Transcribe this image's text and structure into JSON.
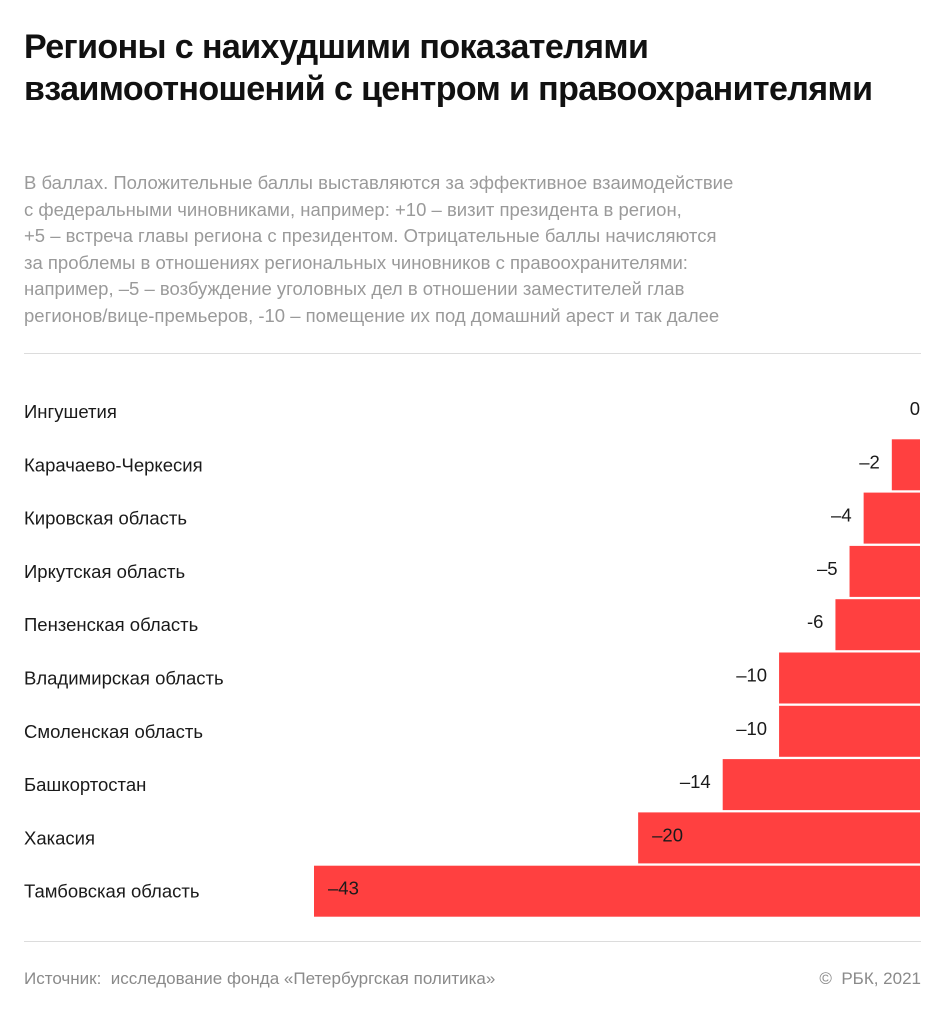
{
  "header": {
    "title": "Регионы с наихудшими показателями взаимоотношений с центром и правоохранителями",
    "subtitle": "В баллах. Положительные баллы выставляются за эффективное взаимодействие\nс федеральными чиновниками, например: +10 – визит президента в регион,\n+5 – встреча главы региона с президентом. Отрицательные баллы начисляются\nза проблемы в отношениях региональных чиновников с правоохранителями:\nнапример, –5 – возбуждение уголовных дел в отношении заместителей глав\nрегионов/вице-премьеров, -10 – помещение их под домашний арест и так далее"
  },
  "chart_data": {
    "type": "bar",
    "orientation": "horizontal",
    "categories": [
      "Ингушетия",
      "Карачаево-Черкесия",
      "Кировская область",
      "Иркутская область",
      "Пензенская область",
      "Владимирская область",
      "Смоленская область",
      "Башкортостан",
      "Хакасия",
      "Тамбовская область"
    ],
    "values": [
      0,
      -2,
      -4,
      -5,
      -6,
      -10,
      -10,
      -14,
      -20,
      -43
    ],
    "value_labels": [
      "0",
      "–2",
      "–4",
      "–5",
      "-6",
      "–10",
      "–10",
      "–14",
      "–20",
      "–43"
    ],
    "xlim": [
      -43,
      0
    ],
    "grid": false,
    "bar_color": "#ff4040"
  },
  "footer": {
    "source": "Источник:  исследование фонда «Петербургская политика»",
    "copyright": "©  РБК, 2021"
  }
}
